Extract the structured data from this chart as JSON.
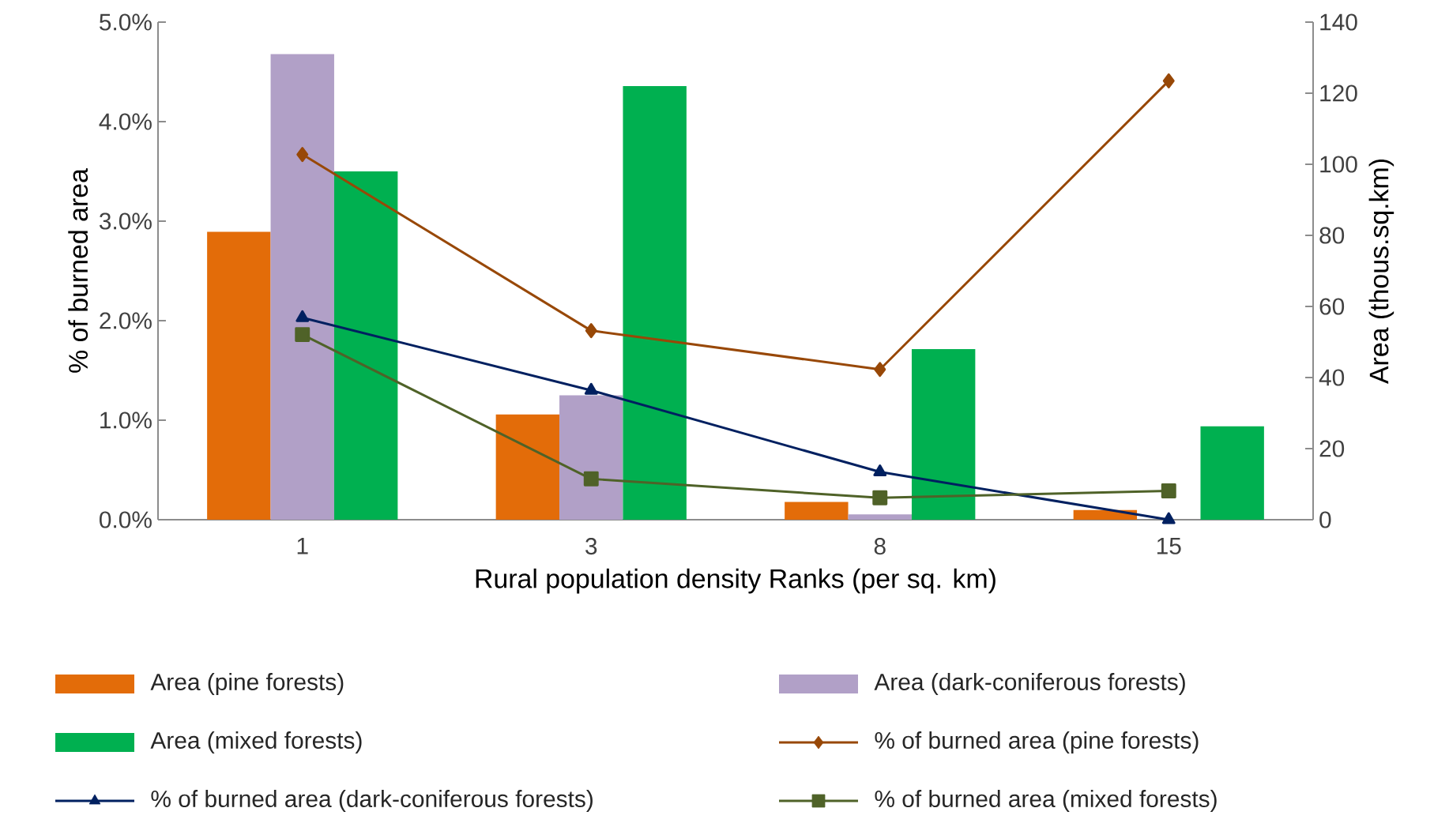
{
  "chart_data": {
    "type": "bar",
    "xlabel": "Rural population density Ranks (per sq. km)",
    "ylabel": "% of burned area",
    "y2label": "Area (thous.sq.km)",
    "categories": [
      "1",
      "3",
      "8",
      "15"
    ],
    "ylim": [
      0,
      5
    ],
    "yticks": [
      {
        "value": 0,
        "label": "0.0%"
      },
      {
        "value": 1,
        "label": "1.0%"
      },
      {
        "value": 2,
        "label": "2.0%"
      },
      {
        "value": 3,
        "label": "3.0%"
      },
      {
        "value": 4,
        "label": "4.0%"
      },
      {
        "value": 5,
        "label": "5.0%"
      }
    ],
    "y2lim": [
      0,
      140
    ],
    "y2ticks": [
      0,
      20,
      40,
      60,
      80,
      100,
      120,
      140
    ],
    "legend": "bottom",
    "grid": false,
    "series": [
      {
        "name": "Area (pine forests)",
        "axis": "y2",
        "color": "#e36c09",
        "values": [
          81,
          29.6,
          5,
          2.7
        ]
      },
      {
        "name": "Area (dark-coniferous forests)",
        "axis": "y2",
        "color": "#b1a0c7",
        "values": [
          131,
          35,
          1.5,
          0
        ]
      },
      {
        "name": "Area (mixed forests)",
        "axis": "y2",
        "color": "#00b050",
        "values": [
          98,
          122,
          48,
          26.3
        ]
      },
      {
        "name": "% of burned area (pine forests)",
        "type": "line",
        "axis": "y",
        "marker": "diamond",
        "color": "#984807",
        "values": [
          3.67,
          1.9,
          1.51,
          4.41
        ]
      },
      {
        "name": "% of burned area (dark-coniferous forests)",
        "type": "line",
        "axis": "y",
        "marker": "triangle",
        "color": "#002060",
        "values": [
          2.03,
          1.3,
          0.48,
          0
        ]
      },
      {
        "name": "% of burned area (mixed forests)",
        "type": "line",
        "axis": "y",
        "marker": "square",
        "color": "#4f6228",
        "values": [
          1.86,
          0.41,
          0.22,
          0.29
        ]
      }
    ]
  }
}
